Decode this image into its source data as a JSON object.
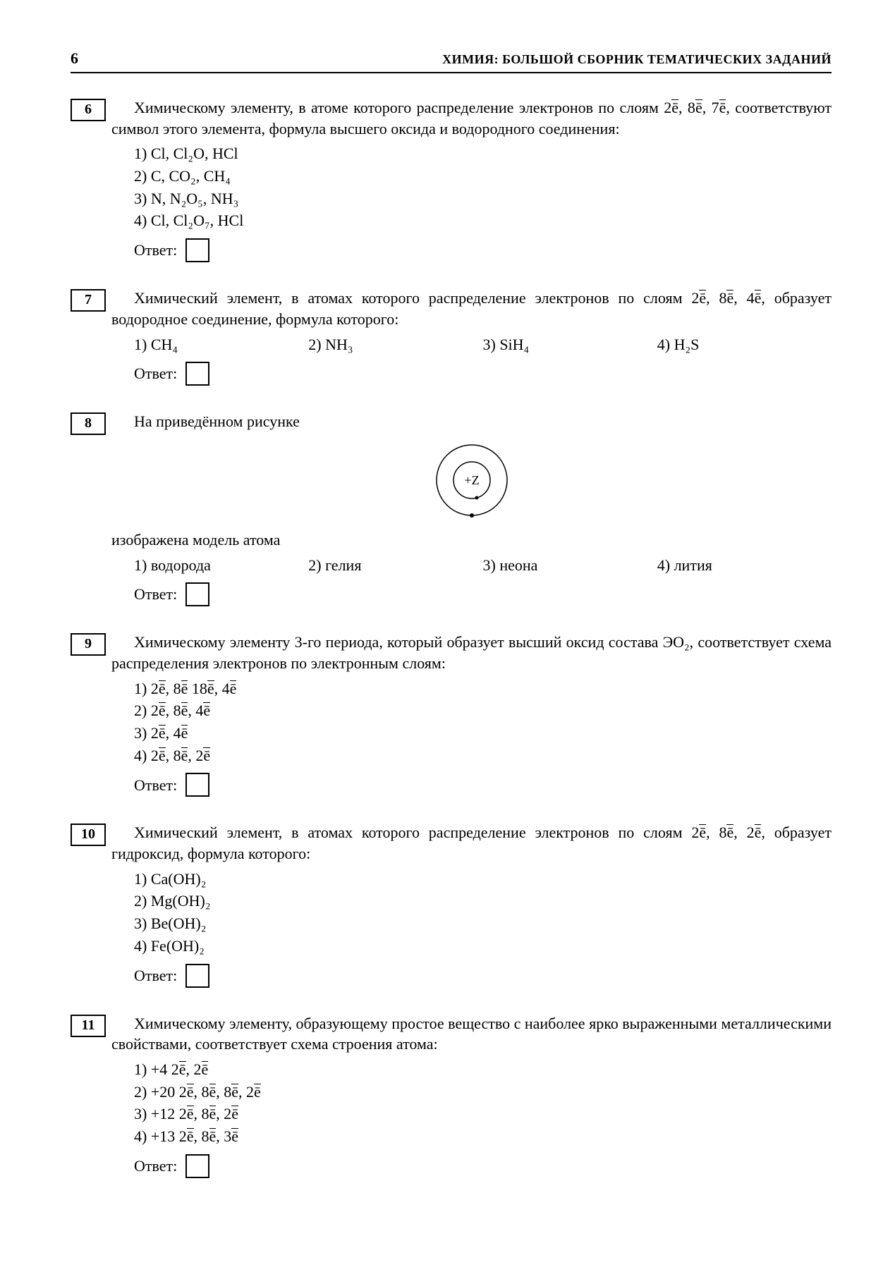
{
  "header": {
    "page_number": "6",
    "title": "ХИМИЯ: БОЛЬШОЙ СБОРНИК ТЕМАТИЧЕСКИХ ЗАДАНИЙ"
  },
  "answer_label": "Ответ:",
  "problems": {
    "p6": {
      "num": "6",
      "stem": "Химическому элементу, в атоме которого распределение электронов по слоям 2ē, 8ē, 7ē, соответствуют символ этого элемента, формула высшего оксида и водородного соединения:",
      "opts": [
        "1) Cl, Cl₂O, HCl",
        "2) C, CO₂, CH₄",
        "3) N, N₂O₅, NH₃",
        "4) Cl, Cl₂O₇, HCl"
      ]
    },
    "p7": {
      "num": "7",
      "stem": "Химический элемент, в атомах которого распределение электронов по слоям 2ē, 8ē, 4ē, образует водородное соединение, формула которого:",
      "opts": [
        "1) CH₄",
        "2) NH₃",
        "3) SiH₄",
        "4) H₂S"
      ]
    },
    "p8": {
      "num": "8",
      "stem_a": "На приведённом рисунке",
      "stem_b": "изображена модель атома",
      "atom_label": "+Z",
      "opts": [
        "1) водорода",
        "2) гелия",
        "3) неона",
        "4) лития"
      ]
    },
    "p9": {
      "num": "9",
      "stem": "Химическому элементу 3-го периода, который образует высший оксид состава ЭO₂, соответствует схема распределения электронов по электронным слоям:",
      "opts": [
        "1) 2ē, 8ē 18ē, 4ē",
        "2) 2ē, 8ē, 4ē",
        "3) 2ē, 4ē",
        "4) 2ē, 8ē, 2ē"
      ]
    },
    "p10": {
      "num": "10",
      "stem": "Химический элемент, в атомах которого распределение электронов по слоям 2ē, 8ē, 2ē, образует гидроксид, формула которого:",
      "opts": [
        "1) Ca(OH)₂",
        "2) Mg(OH)₂",
        "3) Be(OH)₂",
        "4) Fe(OH)₂"
      ]
    },
    "p11": {
      "num": "11",
      "stem": "Химическому элементу, образующему простое вещество с наиболее ярко выраженными металлическими свойствами, соответствует схема строения атома:",
      "opts": [
        "1) +4 2ē, 2ē",
        "2) +20 2ē, 8ē, 8ē, 2ē",
        "3) +12 2ē, 8ē, 2ē",
        "4) +13 2ē, 8ē, 3ē"
      ]
    }
  }
}
